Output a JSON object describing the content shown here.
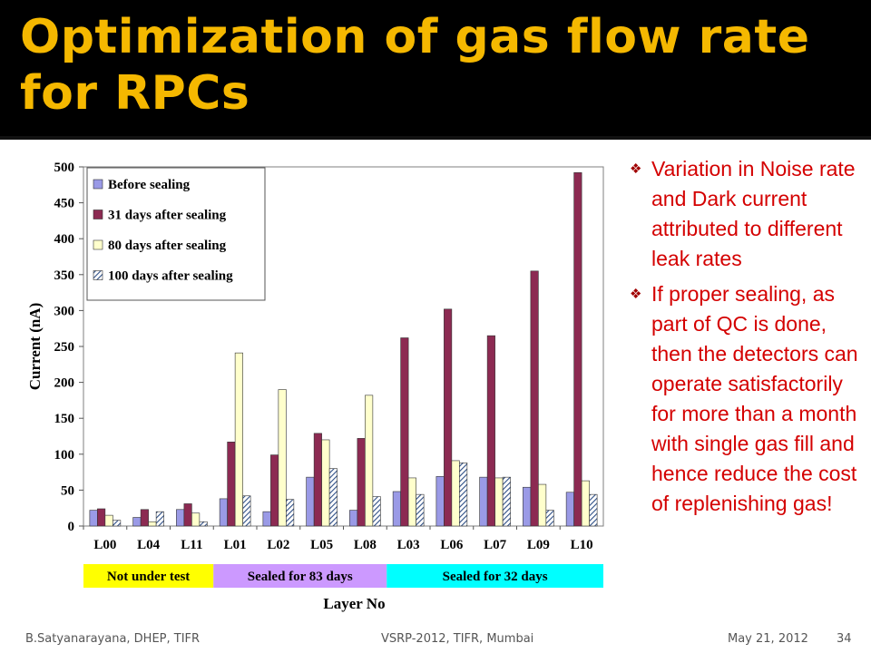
{
  "slide": {
    "title": "Optimization of gas flow rate for RPCs",
    "footer_author": "B.Satyanarayana, DHEP, TIFR",
    "footer_event": "VSRP-2012, TIFR, Mumbai",
    "footer_date": "May 21, 2012",
    "footer_page": "34",
    "title_color": "#f5b800",
    "bullet_color": "#d40000",
    "bullets": [
      "Variation in Noise rate and Dark current attributed to different leak rates",
      "If proper sealing, as part of QC is done, then the detectors can operate satisfactorily for more than a month with single gas fill and hence reduce the cost of replenishing gas!"
    ]
  },
  "chart_data": {
    "type": "bar",
    "ylabel": "Current (nA)",
    "xlabel": "Layer No",
    "ylim": [
      0,
      500
    ],
    "yticks": [
      0,
      50,
      100,
      150,
      200,
      250,
      300,
      350,
      400,
      450,
      500
    ],
    "legend_position": "top-left",
    "categories": [
      "L00",
      "L04",
      "L11",
      "L01",
      "L02",
      "L05",
      "L08",
      "L03",
      "L06",
      "L07",
      "L09",
      "L10"
    ],
    "series": [
      {
        "name": "Before sealing",
        "color": "#9a9ae6",
        "values": [
          22,
          12,
          23,
          38,
          20,
          68,
          22,
          48,
          69,
          68,
          54,
          47
        ]
      },
      {
        "name": "31 days after sealing",
        "color": "#8c2a52",
        "values": [
          24,
          23,
          31,
          117,
          99,
          129,
          122,
          262,
          302,
          265,
          355,
          492
        ]
      },
      {
        "name": "80 days after sealing",
        "color": "#ffffcc",
        "values": [
          15,
          6,
          18,
          241,
          190,
          120,
          182,
          67,
          91,
          67,
          58,
          63
        ]
      },
      {
        "name": "100 days after sealing",
        "color": "#6f90c0",
        "pattern": "hatched",
        "values": [
          8,
          20,
          6,
          42,
          37,
          80,
          41,
          44,
          88,
          68,
          22,
          44
        ]
      }
    ],
    "groups": [
      {
        "label": "Not under test",
        "color": "#ffff00",
        "start": 0,
        "end": 2
      },
      {
        "label": "Sealed for 83 days",
        "color": "#cc99ff",
        "start": 3,
        "end": 6
      },
      {
        "label": "Sealed for 32 days",
        "color": "#00ffff",
        "start": 7,
        "end": 11
      }
    ]
  }
}
